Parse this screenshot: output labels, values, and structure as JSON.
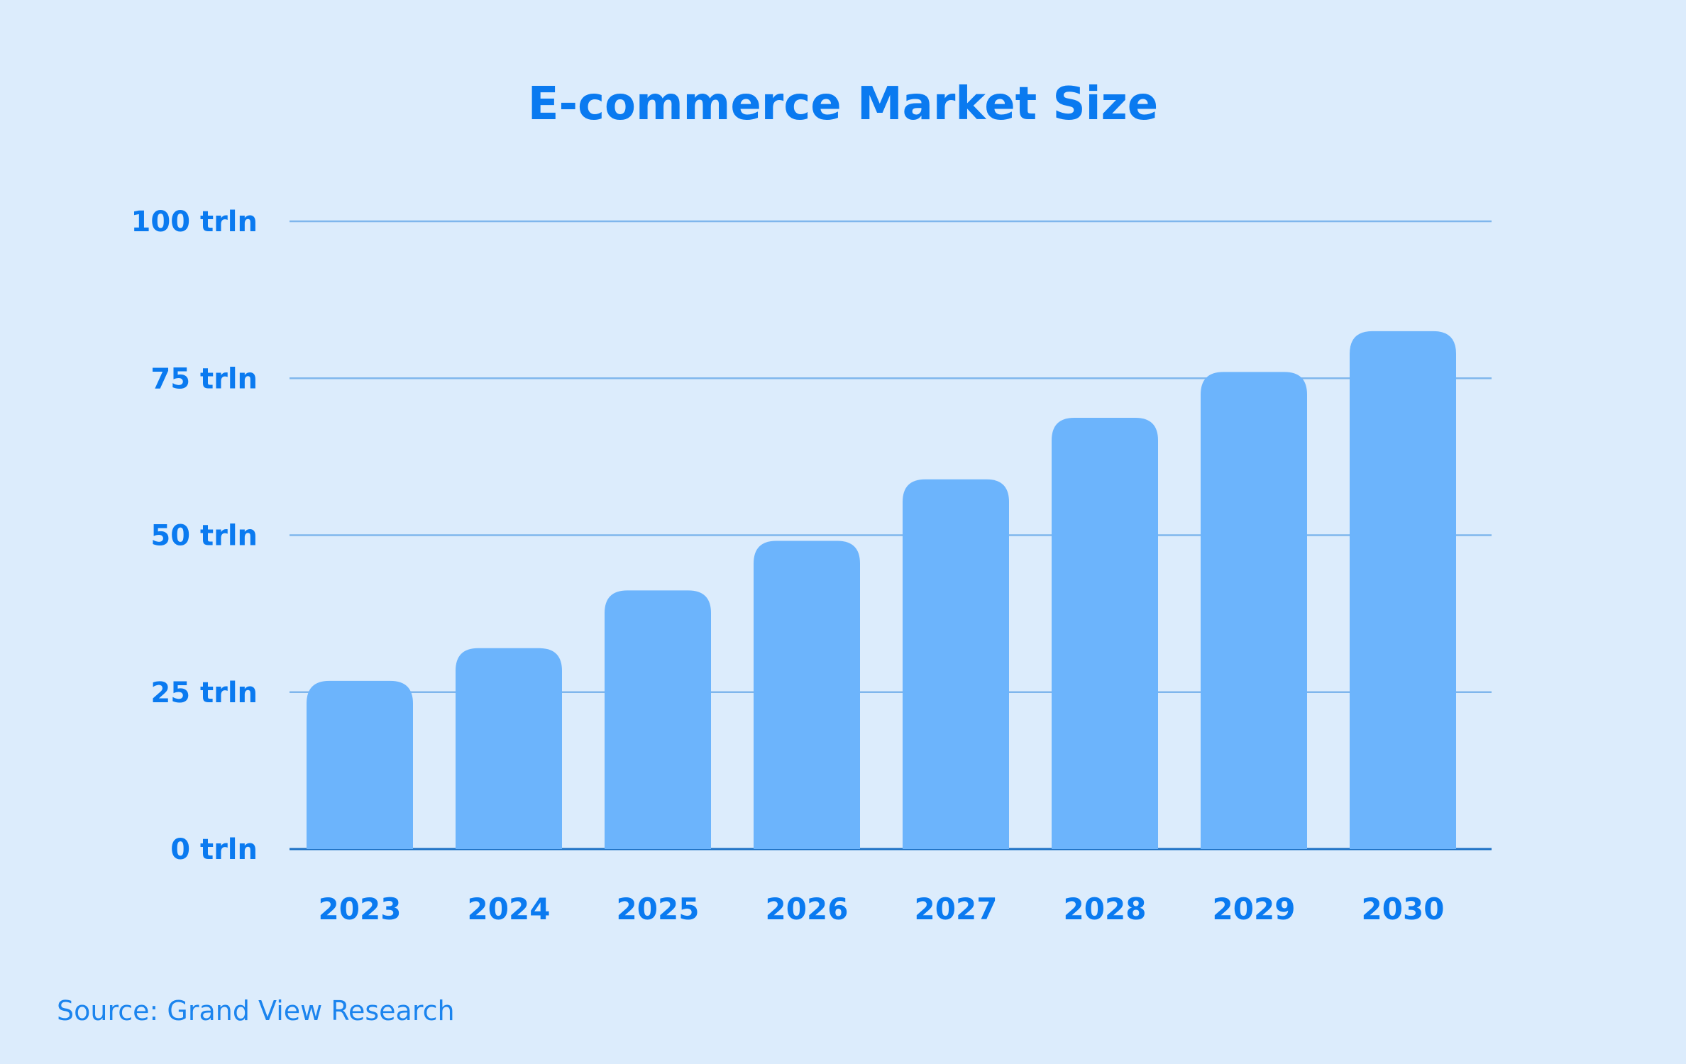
{
  "chart_data": {
    "type": "bar",
    "title": "E-commerce Market Size",
    "categories": [
      "2023",
      "2024",
      "2025",
      "2026",
      "2027",
      "2028",
      "2029",
      "2030"
    ],
    "values": [
      26.8,
      32,
      41.2,
      49.1,
      58.9,
      68.7,
      76,
      82.5
    ],
    "ylim": [
      0,
      100
    ],
    "y_ticks": [
      0,
      25,
      50,
      75,
      100
    ],
    "y_tick_labels": [
      "0 trln",
      "25 trln",
      "50 trln",
      "75 trln",
      "100 trln"
    ],
    "grid": true,
    "legend": "none",
    "source": "Source: Grand View Research",
    "colors": {
      "background": "#dcecfc",
      "bar": "#6cb4fc",
      "text": "#0a7af0",
      "grid": "#7fb6ec",
      "axis": "#1a6fc4"
    }
  }
}
